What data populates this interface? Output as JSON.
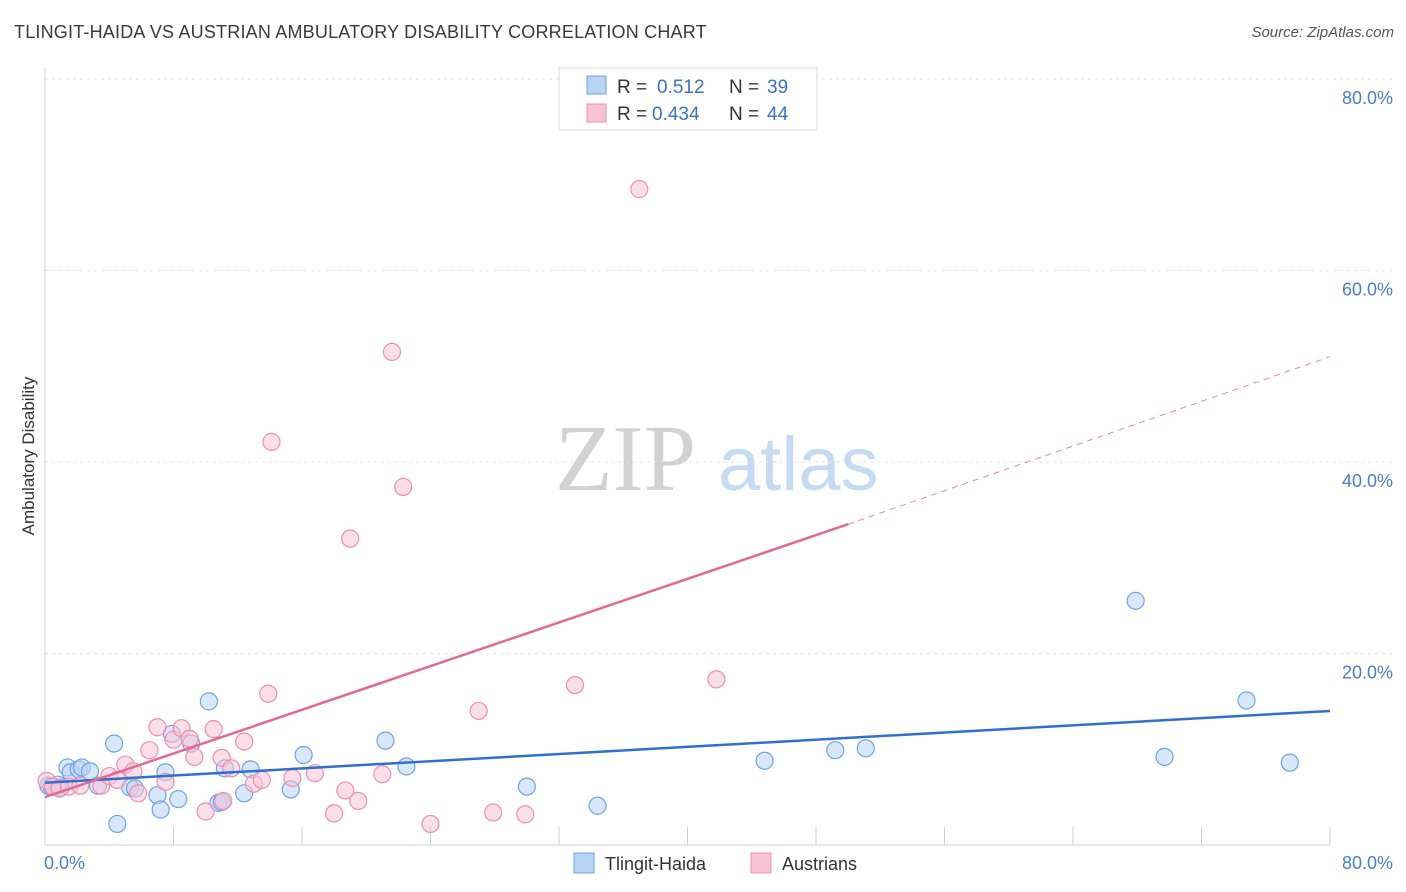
{
  "title": "TLINGIT-HAIDA VS AUSTRIAN AMBULATORY DISABILITY CORRELATION CHART",
  "source": "Source: ZipAtlas.com",
  "watermark": {
    "zip": "ZIP",
    "atlas": "atlas"
  },
  "chart_data": {
    "type": "scatter",
    "ylabel": "Ambulatory Disability",
    "xlim": [
      0,
      80
    ],
    "ylim": [
      0,
      80
    ],
    "x_tick_labels": [
      "0.0%",
      "80.0%"
    ],
    "y_ticks": [
      20,
      40,
      60,
      80
    ],
    "y_tick_labels": [
      "20.0%",
      "40.0%",
      "60.0%",
      "80.0%"
    ],
    "legend": [
      {
        "name": "Tlingit-Haida",
        "r_label": "R =",
        "r": "0.512",
        "n_label": "N =",
        "n": "39",
        "color": "#6fa3e8",
        "fill": "#b9d3f5",
        "line": "#2f6fcf"
      },
      {
        "name": "Austrians",
        "r_label": "R =",
        "r": "0.434",
        "n_label": "N =",
        "n": "44",
        "color": "#ef8fae",
        "fill": "#f7c4d5",
        "line": "#e06a95"
      }
    ],
    "series": [
      {
        "name": "Tlingit-Haida",
        "trend": {
          "x0": 0,
          "y0": 6.5,
          "x1": 80,
          "y1": 14
        },
        "points": [
          [
            0.2,
            6.2
          ],
          [
            1,
            6
          ],
          [
            1.4,
            8.1
          ],
          [
            1.6,
            7.6
          ],
          [
            2.1,
            7.9
          ],
          [
            2.3,
            8.1
          ],
          [
            2.8,
            7.7
          ],
          [
            3.3,
            6.2
          ],
          [
            4.5,
            2.2
          ],
          [
            4.3,
            10.6
          ],
          [
            5.3,
            6
          ],
          [
            5.6,
            5.9
          ],
          [
            7,
            5.2
          ],
          [
            7.2,
            3.7
          ],
          [
            7.5,
            7.6
          ],
          [
            7.9,
            11.6
          ],
          [
            8.3,
            4.8
          ],
          [
            9.1,
            10.6
          ],
          [
            10.2,
            15
          ],
          [
            10.8,
            4.4
          ],
          [
            11,
            4.5
          ],
          [
            11.2,
            8
          ],
          [
            12.4,
            5.4
          ],
          [
            12.8,
            7.9
          ],
          [
            15.3,
            5.8
          ],
          [
            16.1,
            9.4
          ],
          [
            21.2,
            10.9
          ],
          [
            22.5,
            8.2
          ],
          [
            30,
            6.1
          ],
          [
            34.4,
            4.1
          ],
          [
            44.8,
            8.8
          ],
          [
            49.2,
            9.9
          ],
          [
            51.1,
            10.1
          ],
          [
            67.9,
            25.5
          ],
          [
            69.7,
            9.2
          ],
          [
            74.8,
            15.1
          ],
          [
            77.5,
            8.6
          ],
          [
            0.4,
            6.1
          ],
          [
            0.8,
            6.3
          ]
        ]
      },
      {
        "name": "Austrians",
        "trend": {
          "x0": 0,
          "y0": 5,
          "x1": 50,
          "y1": 33.5
        },
        "trend_extended": {
          "x0": 50,
          "y0": 33.5,
          "x1": 80,
          "y1": 51
        },
        "points": [
          [
            0.1,
            6.7
          ],
          [
            0.5,
            6.1
          ],
          [
            0.9,
            5.9
          ],
          [
            1.5,
            6.1
          ],
          [
            2.2,
            6.2
          ],
          [
            3.5,
            6.2
          ],
          [
            4,
            7.2
          ],
          [
            4.5,
            6.8
          ],
          [
            5,
            8.4
          ],
          [
            5.5,
            7.7
          ],
          [
            5.8,
            5.4
          ],
          [
            6.5,
            9.9
          ],
          [
            7,
            12.3
          ],
          [
            7.5,
            6.6
          ],
          [
            8,
            11
          ],
          [
            8.5,
            12.2
          ],
          [
            9,
            11.1
          ],
          [
            9.3,
            9.2
          ],
          [
            10,
            3.5
          ],
          [
            10.5,
            12.1
          ],
          [
            11,
            9.1
          ],
          [
            11.1,
            4.6
          ],
          [
            11.6,
            8
          ],
          [
            12.4,
            10.8
          ],
          [
            13,
            6.4
          ],
          [
            13.5,
            6.8
          ],
          [
            13.9,
            15.8
          ],
          [
            14.1,
            42.1
          ],
          [
            15.4,
            7
          ],
          [
            16.8,
            7.5
          ],
          [
            18,
            3.3
          ],
          [
            18.7,
            5.7
          ],
          [
            19,
            32
          ],
          [
            19.5,
            4.6
          ],
          [
            21,
            7.4
          ],
          [
            21.6,
            51.5
          ],
          [
            22.3,
            37.4
          ],
          [
            24,
            2.2
          ],
          [
            27,
            14
          ],
          [
            27.9,
            3.4
          ],
          [
            29.9,
            3.2
          ],
          [
            33,
            16.7
          ],
          [
            37,
            68.5
          ],
          [
            41.8,
            17.3
          ]
        ]
      }
    ]
  }
}
